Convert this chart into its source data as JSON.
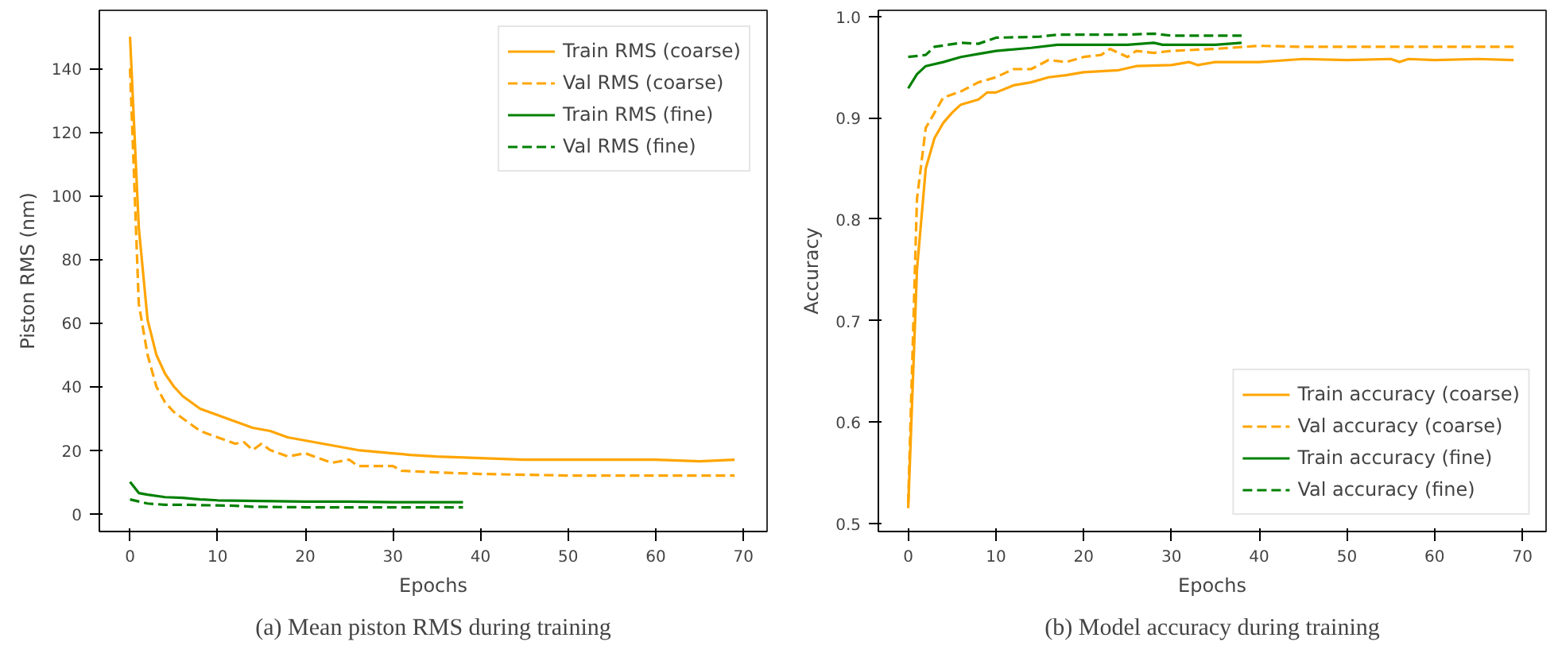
{
  "chart_data": [
    {
      "type": "line",
      "title": "(a) Mean piston RMS during training",
      "xlabel": "Epochs",
      "ylabel": "Piston RMS (nm)",
      "xlim": [
        -3.5,
        72.7
      ],
      "ylim": [
        -5.6,
        158.3
      ],
      "xticks": [
        0,
        10,
        20,
        30,
        40,
        50,
        60,
        70
      ],
      "yticks": [
        0,
        20,
        40,
        60,
        80,
        100,
        120,
        140
      ],
      "grid": false,
      "legend": "top right",
      "series": [
        {
          "name": "Train RMS (coarse)",
          "color": "#ffa500",
          "line_style": "solid",
          "x": [
            0,
            1,
            2,
            3,
            4,
            5,
            6,
            7,
            8,
            9,
            10,
            12,
            14,
            16,
            18,
            20,
            22,
            24,
            26,
            28,
            30,
            32,
            35,
            40,
            45,
            50,
            55,
            60,
            65,
            69
          ],
          "values": [
            150,
            90,
            61,
            50,
            44,
            40,
            37,
            35,
            33,
            32,
            31,
            29,
            27,
            26,
            24,
            23,
            22,
            21,
            20,
            19.5,
            19,
            18.5,
            18,
            17.5,
            17,
            17,
            17,
            17,
            16.5,
            17
          ]
        },
        {
          "name": "Val RMS (coarse)",
          "color": "#ffa500",
          "line_style": "dashed",
          "x": [
            0,
            1,
            2,
            3,
            4,
            5,
            6,
            8,
            10,
            12,
            13,
            14,
            15,
            16,
            18,
            20,
            22,
            23,
            25,
            26,
            28,
            30,
            31,
            35,
            40,
            50,
            60,
            69
          ],
          "values": [
            140,
            66,
            50,
            40,
            35,
            32,
            30,
            26,
            24,
            22,
            22.5,
            20,
            22,
            20,
            18,
            19,
            17,
            16,
            17,
            15,
            15,
            15,
            13.5,
            13,
            12.5,
            12,
            12,
            12
          ]
        },
        {
          "name": "Train RMS (fine)",
          "color": "#008000",
          "line_style": "solid",
          "x": [
            0,
            1,
            2,
            4,
            6,
            8,
            10,
            15,
            20,
            25,
            30,
            38
          ],
          "values": [
            10,
            6.5,
            6,
            5.2,
            5,
            4.5,
            4.2,
            4,
            3.8,
            3.8,
            3.6,
            3.6
          ]
        },
        {
          "name": "Val RMS (fine)",
          "color": "#008000",
          "line_style": "dashed",
          "x": [
            0,
            2,
            4,
            6,
            10,
            12,
            14,
            20,
            30,
            38
          ],
          "values": [
            4.5,
            3.2,
            2.8,
            2.8,
            2.6,
            2.5,
            2.2,
            2,
            2,
            2
          ]
        }
      ]
    },
    {
      "type": "line",
      "title": "(b) Model accuracy during training",
      "xlabel": "Epochs",
      "ylabel": "Accuracy",
      "xlim": [
        -3.4,
        72.7
      ],
      "ylim": [
        0.492,
        1.006
      ],
      "xticks": [
        0,
        10,
        20,
        30,
        40,
        50,
        60,
        70
      ],
      "yticks": [
        0.5,
        0.6,
        0.7,
        0.8,
        0.9,
        {
          "value": 1,
          "label": "1.0"
        }
      ],
      "grid": false,
      "legend": "bottom right",
      "series": [
        {
          "name": "Train accuracy (coarse)",
          "color": "#ffa500",
          "line_style": "solid",
          "x": [
            0,
            1,
            2,
            3,
            4,
            5,
            6,
            8,
            9,
            10,
            12,
            14,
            16,
            18,
            20,
            22,
            24,
            26,
            30,
            32,
            33,
            35,
            40,
            45,
            50,
            55,
            56,
            57,
            60,
            65,
            69
          ],
          "values": [
            0.515,
            0.75,
            0.85,
            0.88,
            0.895,
            0.905,
            0.913,
            0.918,
            0.925,
            0.925,
            0.932,
            0.935,
            0.94,
            0.942,
            0.945,
            0.946,
            0.947,
            0.951,
            0.952,
            0.955,
            0.952,
            0.955,
            0.955,
            0.958,
            0.957,
            0.958,
            0.955,
            0.958,
            0.957,
            0.958,
            0.957
          ]
        },
        {
          "name": "Val accuracy (coarse)",
          "color": "#ffa500",
          "line_style": "dashed",
          "x": [
            0,
            1,
            2,
            3,
            4,
            6,
            8,
            10,
            12,
            14,
            16,
            18,
            20,
            22,
            23,
            25,
            26,
            28,
            30,
            35,
            40,
            45,
            50,
            60,
            69
          ],
          "values": [
            0.52,
            0.82,
            0.89,
            0.905,
            0.92,
            0.926,
            0.935,
            0.94,
            0.948,
            0.948,
            0.957,
            0.955,
            0.96,
            0.962,
            0.968,
            0.96,
            0.966,
            0.964,
            0.966,
            0.968,
            0.971,
            0.97,
            0.97,
            0.97,
            0.97
          ]
        },
        {
          "name": "Train accuracy (fine)",
          "color": "#008000",
          "line_style": "solid",
          "x": [
            0,
            1,
            2,
            4,
            6,
            8,
            10,
            14,
            17,
            20,
            25,
            28,
            29,
            35,
            38
          ],
          "values": [
            0.929,
            0.943,
            0.951,
            0.955,
            0.96,
            0.963,
            0.966,
            0.969,
            0.972,
            0.972,
            0.972,
            0.974,
            0.972,
            0.972,
            0.974
          ]
        },
        {
          "name": "Val accuracy (fine)",
          "color": "#008000",
          "line_style": "dashed",
          "x": [
            0,
            2,
            3,
            6,
            8,
            10,
            15,
            17,
            25,
            28,
            30,
            38
          ],
          "values": [
            0.96,
            0.962,
            0.97,
            0.974,
            0.973,
            0.979,
            0.98,
            0.982,
            0.982,
            0.983,
            0.981,
            0.981
          ]
        }
      ]
    }
  ]
}
